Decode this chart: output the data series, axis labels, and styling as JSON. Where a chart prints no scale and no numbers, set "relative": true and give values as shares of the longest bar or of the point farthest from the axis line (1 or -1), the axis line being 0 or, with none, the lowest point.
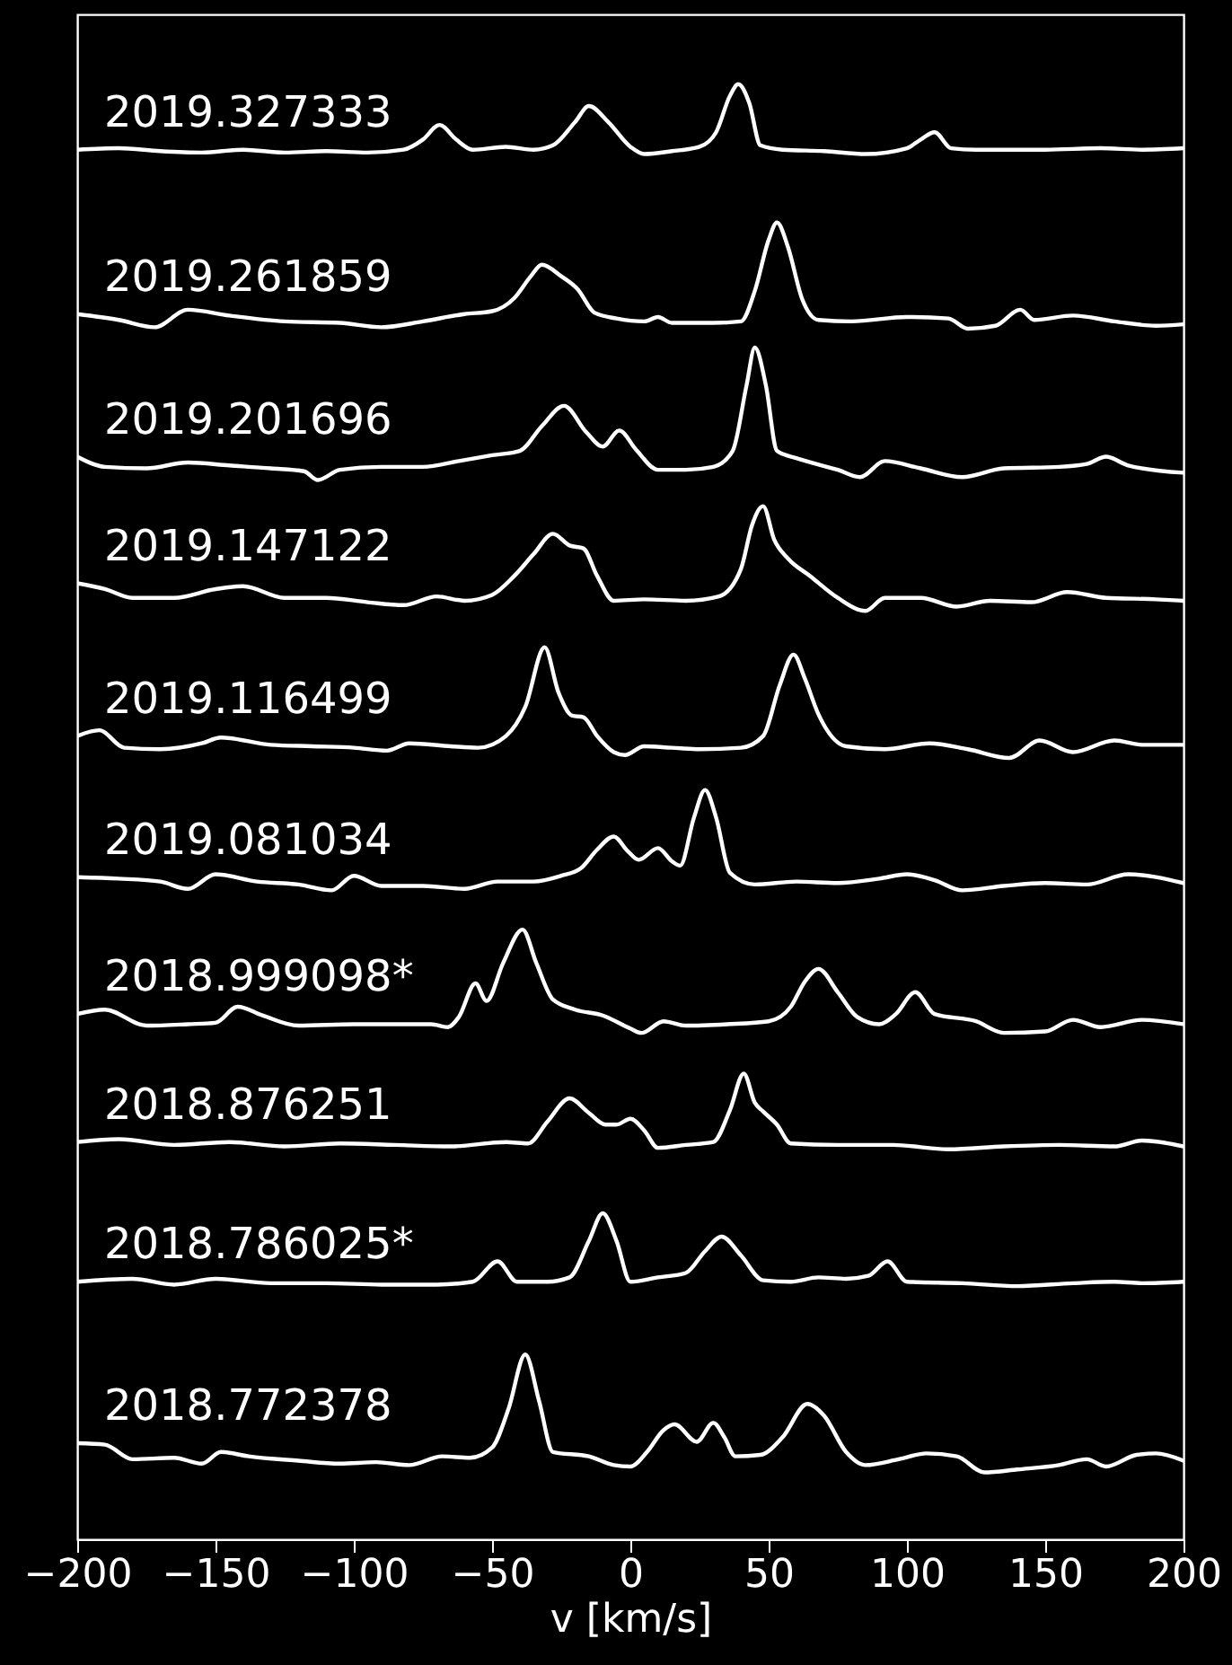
{
  "chart_data": {
    "type": "line",
    "xlabel": "v [km/s]",
    "xlim": [
      -200,
      200
    ],
    "xticks": [
      -200,
      -150,
      -100,
      -50,
      0,
      50,
      100,
      150,
      200
    ],
    "relative": true,
    "tick_labels": "x",
    "series": [
      {
        "name": "2019.327333",
        "color": "#ffffff",
        "x": [
          -200,
          -185,
          -170,
          -155,
          -140,
          -125,
          -110,
          -95,
          -82,
          -75,
          -69,
          -63,
          -57,
          -45,
          -35,
          -28,
          -20,
          -15,
          -8,
          0,
          5,
          15,
          25,
          31,
          36,
          39,
          43,
          47,
          55,
          70,
          85,
          100,
          105,
          110,
          116,
          125,
          150,
          170,
          185,
          200
        ],
        "values": [
          0.955,
          0.956,
          0.954,
          0.953,
          0.955,
          0.953,
          0.954,
          0.953,
          0.955,
          0.962,
          0.972,
          0.962,
          0.955,
          0.957,
          0.955,
          0.958,
          0.974,
          0.985,
          0.974,
          0.957,
          0.952,
          0.954,
          0.957,
          0.967,
          0.992,
          1.0,
          0.987,
          0.958,
          0.955,
          0.954,
          0.952,
          0.956,
          0.962,
          0.967,
          0.956,
          0.955,
          0.955,
          0.956,
          0.955,
          0.956
        ]
      },
      {
        "name": "2019.261859",
        "color": "#ffffff",
        "x": [
          -200,
          -185,
          -172,
          -160,
          -145,
          -125,
          -105,
          -90,
          -75,
          -60,
          -50,
          -42,
          -36,
          -32,
          -25,
          -19,
          -13,
          -5,
          5,
          10,
          15,
          30,
          40,
          45,
          50,
          53,
          57,
          62,
          68,
          80,
          100,
          115,
          122,
          132,
          141,
          146,
          160,
          175,
          190,
          200
        ],
        "values": [
          0.842,
          0.838,
          0.833,
          0.845,
          0.841,
          0.837,
          0.836,
          0.833,
          0.837,
          0.842,
          0.844,
          0.853,
          0.868,
          0.876,
          0.868,
          0.859,
          0.843,
          0.839,
          0.837,
          0.84,
          0.836,
          0.836,
          0.837,
          0.858,
          0.893,
          0.905,
          0.888,
          0.853,
          0.838,
          0.837,
          0.84,
          0.839,
          0.832,
          0.834,
          0.845,
          0.838,
          0.841,
          0.837,
          0.834,
          0.835
        ]
      },
      {
        "name": "2019.201696",
        "color": "#ffffff",
        "x": [
          -200,
          -190,
          -175,
          -160,
          -145,
          -130,
          -118,
          -113,
          -105,
          -90,
          -75,
          -62,
          -50,
          -40,
          -32,
          -24,
          -16,
          -10,
          -4,
          2,
          10,
          20,
          30,
          37,
          42,
          45,
          49,
          53,
          60,
          75,
          83,
          92,
          105,
          120,
          135,
          155,
          165,
          172,
          180,
          200
        ],
        "values": [
          0.744,
          0.737,
          0.736,
          0.74,
          0.738,
          0.736,
          0.734,
          0.728,
          0.735,
          0.737,
          0.737,
          0.741,
          0.745,
          0.748,
          0.765,
          0.779,
          0.761,
          0.751,
          0.762,
          0.749,
          0.735,
          0.735,
          0.737,
          0.748,
          0.793,
          0.819,
          0.793,
          0.748,
          0.743,
          0.735,
          0.73,
          0.741,
          0.736,
          0.73,
          0.736,
          0.737,
          0.739,
          0.744,
          0.738,
          0.733
        ]
      },
      {
        "name": "2019.147122",
        "color": "#ffffff",
        "x": [
          -200,
          -190,
          -180,
          -165,
          -150,
          -140,
          -125,
          -110,
          -95,
          -82,
          -70,
          -60,
          -50,
          -42,
          -35,
          -28,
          -22,
          -17,
          -12,
          -6,
          5,
          20,
          32,
          40,
          44,
          48,
          52,
          57,
          65,
          75,
          85,
          92,
          105,
          118,
          130,
          145,
          158,
          172,
          190,
          200
        ],
        "values": [
          0.657,
          0.653,
          0.647,
          0.647,
          0.653,
          0.655,
          0.647,
          0.647,
          0.644,
          0.642,
          0.648,
          0.645,
          0.649,
          0.662,
          0.677,
          0.691,
          0.683,
          0.681,
          0.662,
          0.645,
          0.646,
          0.645,
          0.648,
          0.667,
          0.697,
          0.71,
          0.687,
          0.674,
          0.662,
          0.647,
          0.638,
          0.647,
          0.647,
          0.641,
          0.645,
          0.644,
          0.651,
          0.647,
          0.646,
          0.645
        ]
      },
      {
        "name": "2019.116499",
        "color": "#ffffff",
        "x": [
          -200,
          -192,
          -183,
          -170,
          -155,
          -148,
          -130,
          -115,
          -100,
          -88,
          -80,
          -65,
          -55,
          -45,
          -38,
          -31,
          -26,
          -21,
          -17,
          -12,
          -6,
          -2,
          5,
          15,
          25,
          40,
          48,
          54,
          59,
          63,
          68,
          78,
          92,
          108,
          122,
          137,
          148,
          160,
          175,
          185,
          200
        ],
        "values": [
          0.552,
          0.556,
          0.544,
          0.543,
          0.547,
          0.551,
          0.546,
          0.545,
          0.544,
          0.542,
          0.547,
          0.545,
          0.544,
          0.552,
          0.572,
          0.613,
          0.582,
          0.566,
          0.565,
          0.552,
          0.541,
          0.539,
          0.545,
          0.544,
          0.543,
          0.544,
          0.552,
          0.587,
          0.608,
          0.592,
          0.567,
          0.545,
          0.543,
          0.547,
          0.543,
          0.537,
          0.549,
          0.541,
          0.549,
          0.546,
          0.546
        ]
      },
      {
        "name": "2019.081034",
        "color": "#ffffff",
        "x": [
          -200,
          -185,
          -170,
          -160,
          -150,
          -135,
          -120,
          -108,
          -100,
          -90,
          -75,
          -60,
          -48,
          -35,
          -25,
          -18,
          -12,
          -6,
          -1,
          3,
          10,
          15,
          18,
          23,
          27,
          31,
          36,
          45,
          60,
          75,
          90,
          100,
          110,
          120,
          135,
          150,
          165,
          180,
          200
        ],
        "values": [
          0.455,
          0.454,
          0.452,
          0.447,
          0.457,
          0.452,
          0.45,
          0.446,
          0.456,
          0.449,
          0.449,
          0.447,
          0.452,
          0.452,
          0.456,
          0.461,
          0.474,
          0.483,
          0.473,
          0.467,
          0.475,
          0.466,
          0.463,
          0.496,
          0.515,
          0.496,
          0.458,
          0.45,
          0.452,
          0.451,
          0.454,
          0.457,
          0.453,
          0.446,
          0.449,
          0.451,
          0.45,
          0.457,
          0.451
        ]
      },
      {
        "name": "2018.999098*",
        "color": "#ffffff",
        "x": [
          -200,
          -190,
          -175,
          -160,
          -150,
          -142,
          -133,
          -120,
          -100,
          -85,
          -72,
          -66,
          -62,
          -56,
          -52,
          -46,
          -39,
          -34,
          -28,
          -20,
          -10,
          0,
          4,
          12,
          20,
          35,
          50,
          58,
          63,
          68,
          75,
          82,
          90,
          96,
          103,
          110,
          125,
          135,
          150,
          160,
          170,
          185,
          200
        ],
        "values": [
          0.361,
          0.364,
          0.353,
          0.354,
          0.355,
          0.366,
          0.36,
          0.353,
          0.354,
          0.354,
          0.354,
          0.352,
          0.359,
          0.382,
          0.37,
          0.396,
          0.419,
          0.396,
          0.371,
          0.364,
          0.36,
          0.351,
          0.348,
          0.356,
          0.353,
          0.354,
          0.356,
          0.366,
          0.383,
          0.392,
          0.376,
          0.359,
          0.354,
          0.361,
          0.376,
          0.361,
          0.356,
          0.348,
          0.349,
          0.357,
          0.352,
          0.357,
          0.354
        ]
      },
      {
        "name": "2018.876251",
        "color": "#ffffff",
        "x": [
          -200,
          -185,
          -165,
          -145,
          -125,
          -105,
          -85,
          -65,
          -45,
          -37,
          -30,
          -22,
          -15,
          -9,
          -5,
          0,
          5,
          10,
          20,
          30,
          36,
          41,
          45,
          48,
          53,
          58,
          75,
          95,
          115,
          135,
          155,
          175,
          185,
          200
        ],
        "values": [
          0.273,
          0.275,
          0.271,
          0.273,
          0.27,
          0.272,
          0.271,
          0.27,
          0.273,
          0.272,
          0.287,
          0.303,
          0.293,
          0.285,
          0.285,
          0.289,
          0.281,
          0.269,
          0.271,
          0.273,
          0.295,
          0.32,
          0.3,
          0.294,
          0.285,
          0.272,
          0.271,
          0.271,
          0.268,
          0.27,
          0.271,
          0.27,
          0.274,
          0.27
        ]
      },
      {
        "name": "2018.786025*",
        "color": "#ffffff",
        "x": [
          -200,
          -180,
          -165,
          -150,
          -130,
          -110,
          -90,
          -70,
          -57,
          -48,
          -41,
          -30,
          -22,
          -15,
          -10,
          -5,
          0,
          10,
          20,
          27,
          33,
          40,
          48,
          58,
          68,
          78,
          86,
          93,
          100,
          120,
          140,
          160,
          175,
          185,
          200
        ],
        "values": [
          0.177,
          0.179,
          0.175,
          0.179,
          0.176,
          0.176,
          0.175,
          0.175,
          0.177,
          0.191,
          0.177,
          0.177,
          0.18,
          0.205,
          0.224,
          0.205,
          0.177,
          0.18,
          0.183,
          0.198,
          0.208,
          0.195,
          0.178,
          0.177,
          0.18,
          0.179,
          0.181,
          0.191,
          0.177,
          0.176,
          0.174,
          0.176,
          0.177,
          0.176,
          0.177
        ]
      },
      {
        "name": "2018.772378",
        "color": "#ffffff",
        "x": [
          -200,
          -190,
          -180,
          -165,
          -155,
          -148,
          -138,
          -120,
          -105,
          -92,
          -80,
          -68,
          -58,
          -50,
          -44,
          -38,
          -33,
          -28,
          -15,
          -6,
          0,
          6,
          12,
          16,
          24,
          30,
          34,
          38,
          47,
          55,
          64,
          70,
          78,
          85,
          97,
          107,
          118,
          128,
          140,
          155,
          165,
          172,
          183,
          190,
          200
        ],
        "values": [
          0.066,
          0.065,
          0.055,
          0.056,
          0.052,
          0.06,
          0.057,
          0.054,
          0.052,
          0.053,
          0.051,
          0.057,
          0.056,
          0.063,
          0.09,
          0.127,
          0.095,
          0.06,
          0.057,
          0.051,
          0.05,
          0.06,
          0.075,
          0.079,
          0.067,
          0.08,
          0.07,
          0.057,
          0.058,
          0.07,
          0.093,
          0.085,
          0.06,
          0.051,
          0.055,
          0.059,
          0.057,
          0.046,
          0.048,
          0.051,
          0.055,
          0.05,
          0.058,
          0.059,
          0.054
        ]
      }
    ]
  }
}
